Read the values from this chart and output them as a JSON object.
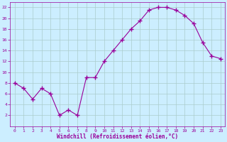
{
  "x": [
    0,
    1,
    2,
    3,
    4,
    5,
    6,
    7,
    8,
    9,
    10,
    11,
    12,
    13,
    14,
    15,
    16,
    17,
    18,
    19,
    20,
    21,
    22,
    23
  ],
  "y": [
    8,
    7,
    5,
    7,
    6,
    2,
    3,
    2,
    9,
    9,
    12,
    14,
    16,
    18,
    19.5,
    21.5,
    22,
    22,
    21.5,
    20.5,
    19,
    15.5,
    13,
    12.5
  ],
  "line_color": "#990099",
  "marker": "+",
  "bg_color": "#cceeff",
  "grid_color": "#aacccc",
  "xlabel": "Windchill (Refroidissement éolien,°C)",
  "xlabel_color": "#990099",
  "tick_color": "#990099",
  "ylim": [
    0,
    23
  ],
  "xlim": [
    -0.5,
    23.5
  ],
  "yticks": [
    2,
    4,
    6,
    8,
    10,
    12,
    14,
    16,
    18,
    20,
    22
  ],
  "xticks": [
    0,
    1,
    2,
    3,
    4,
    5,
    6,
    7,
    8,
    9,
    10,
    11,
    12,
    13,
    14,
    15,
    16,
    17,
    18,
    19,
    20,
    21,
    22,
    23
  ]
}
